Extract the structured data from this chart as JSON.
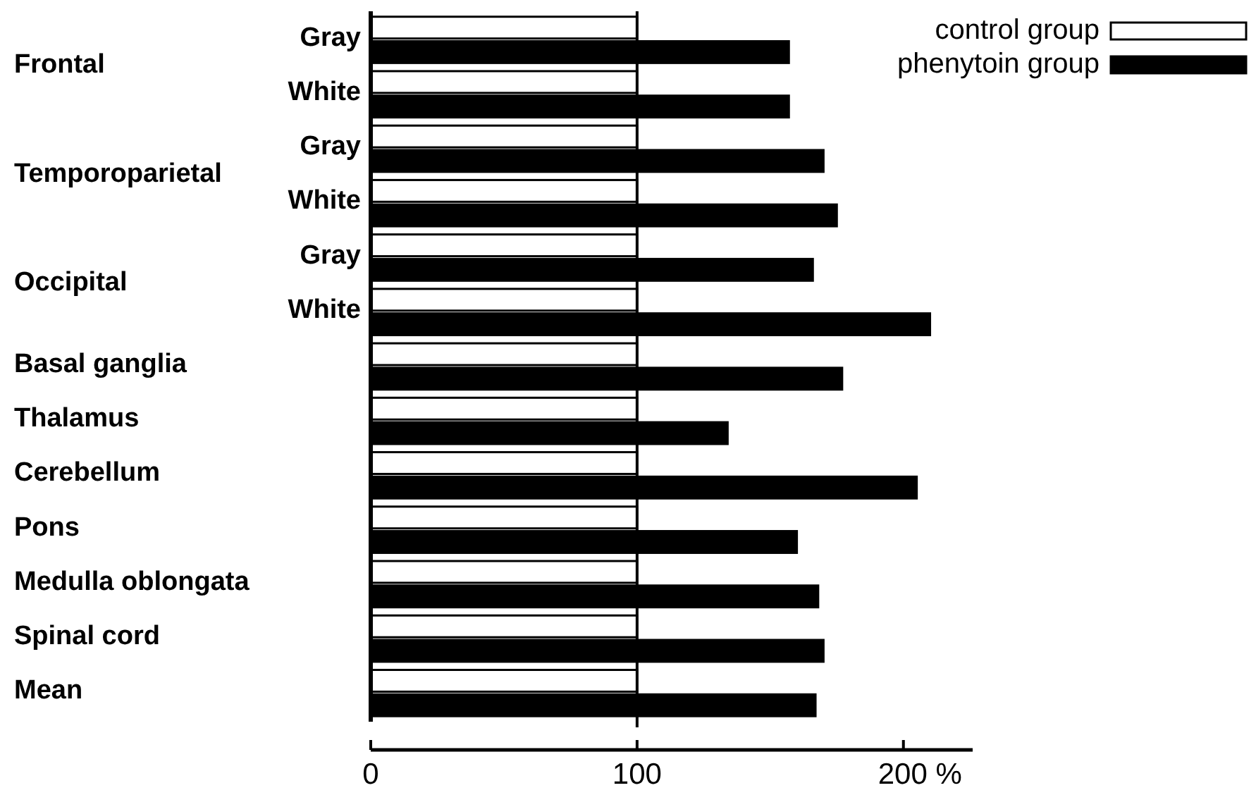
{
  "chart_data": {
    "type": "bar",
    "orientation": "horizontal",
    "categories": [
      "Gray",
      "White",
      "Gray",
      "White",
      "Gray",
      "White",
      "Basal ganglia",
      "Thalamus",
      "Cerebellum",
      "Pons",
      "Medulla oblongata",
      "Spinal cord",
      "Mean"
    ],
    "annotations": [
      "Frontal",
      "Temporoparietal",
      "Occipital"
    ],
    "series": [
      {
        "name": "control group",
        "color": "#ffffff",
        "values": [
          100,
          100,
          100,
          100,
          100,
          100,
          100,
          100,
          100,
          100,
          100,
          100,
          100
        ]
      },
      {
        "name": "phenytoin group",
        "color": "#000000",
        "values": [
          157,
          157,
          170,
          175,
          166,
          210,
          177,
          134,
          205,
          160,
          168,
          170,
          167
        ]
      }
    ],
    "xlim": [
      0,
      226
    ],
    "xticks": [
      0,
      100,
      {
        "value": 200,
        "label": "200 %"
      }
    ],
    "ref_lines": [
      {
        "axis": "x",
        "value": 100
      }
    ],
    "legend": "top right",
    "grid": false
  }
}
